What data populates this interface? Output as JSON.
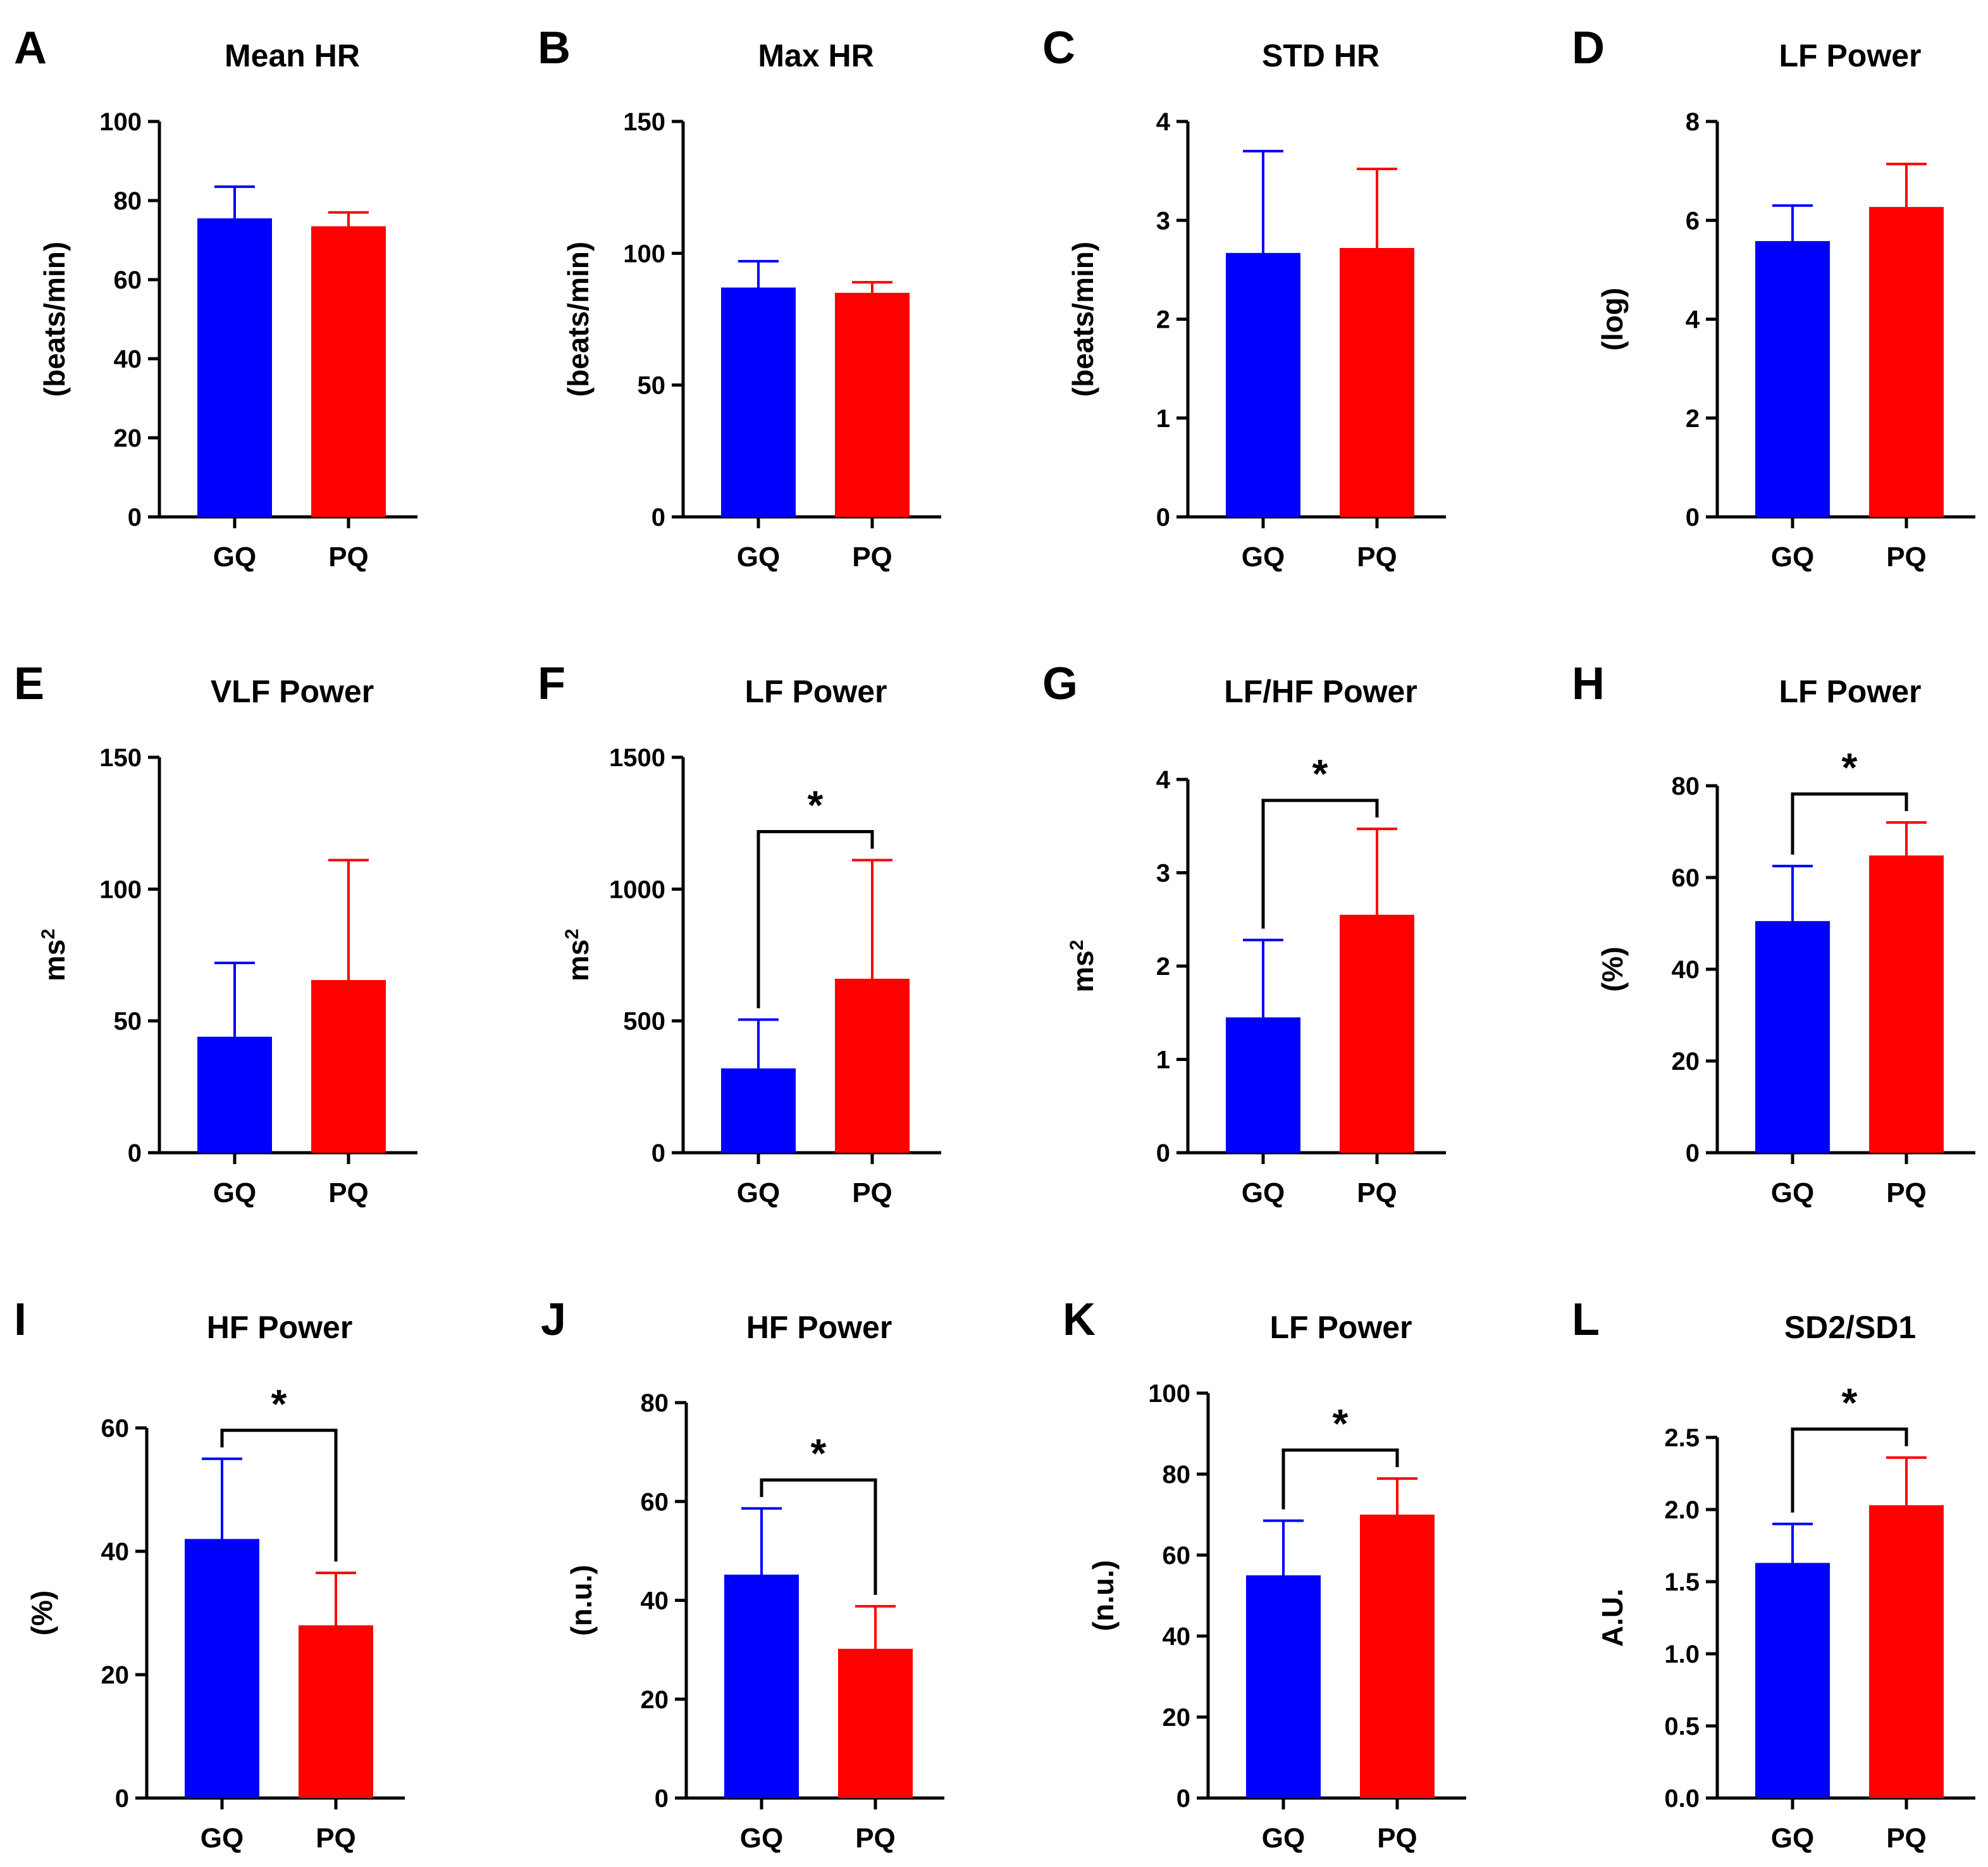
{
  "colors": {
    "GQ": "#0000ff",
    "PQ": "#ff0000",
    "axis": "#000000"
  },
  "chart_data": [
    {
      "type": "bar",
      "panel": "A",
      "title": "Mean HR",
      "ylabel": "(beats/min)",
      "ylabel_sup": "",
      "categories": [
        "GQ",
        "PQ"
      ],
      "values": [
        75.5,
        73.5
      ],
      "errors": [
        8.0,
        3.5
      ],
      "ylim": [
        0,
        100
      ],
      "yticks": [
        "0",
        "20",
        "40",
        "60",
        "80",
        "100"
      ],
      "significance": null
    },
    {
      "type": "bar",
      "panel": "B",
      "title": "Max HR",
      "ylabel": "(beats/min)",
      "ylabel_sup": "",
      "categories": [
        "GQ",
        "PQ"
      ],
      "values": [
        87,
        85
      ],
      "errors": [
        10,
        4
      ],
      "ylim": [
        0,
        150
      ],
      "yticks": [
        "0",
        "50",
        "100",
        "150"
      ],
      "significance": null
    },
    {
      "type": "bar",
      "panel": "C",
      "title": "STD HR",
      "ylabel": "(beats/min)",
      "ylabel_sup": "",
      "categories": [
        "GQ",
        "PQ"
      ],
      "values": [
        2.67,
        2.72
      ],
      "errors": [
        1.03,
        0.8
      ],
      "ylim": [
        0,
        4
      ],
      "yticks": [
        "0",
        "1",
        "2",
        "3",
        "4"
      ],
      "significance": null
    },
    {
      "type": "bar",
      "panel": "D",
      "title": "LF Power",
      "ylabel": "(log)",
      "ylabel_sup": "",
      "categories": [
        "GQ",
        "PQ"
      ],
      "values": [
        5.58,
        6.27
      ],
      "errors": [
        0.72,
        0.87
      ],
      "ylim": [
        0,
        8
      ],
      "yticks": [
        "0",
        "2",
        "4",
        "6",
        "8"
      ],
      "significance": null
    },
    {
      "type": "bar",
      "panel": "E",
      "title": "VLF Power",
      "ylabel": "ms",
      "ylabel_sup": "2",
      "categories": [
        "GQ",
        "PQ"
      ],
      "values": [
        44,
        65.5
      ],
      "errors": [
        28,
        45.5
      ],
      "ylim": [
        0,
        150
      ],
      "yticks": [
        "0",
        "50",
        "100",
        "150"
      ],
      "significance": null
    },
    {
      "type": "bar",
      "panel": "F",
      "title": "LF Power",
      "ylabel": "ms",
      "ylabel_sup": "2",
      "categories": [
        "GQ",
        "PQ"
      ],
      "values": [
        320,
        660
      ],
      "errors": [
        185,
        450
      ],
      "ylim": [
        0,
        1500
      ],
      "yticks": [
        "0",
        "500",
        "1000",
        "1500"
      ],
      "significance": "*"
    },
    {
      "type": "bar",
      "panel": "G",
      "title": "LF/HF Power",
      "ylabel": "ms",
      "ylabel_sup": "2",
      "categories": [
        "GQ",
        "PQ"
      ],
      "values": [
        1.45,
        2.55
      ],
      "errors": [
        0.83,
        0.92
      ],
      "ylim": [
        0,
        4
      ],
      "yticks": [
        "0",
        "1",
        "2",
        "3",
        "4"
      ],
      "significance": "*"
    },
    {
      "type": "bar",
      "panel": "H",
      "title": "LF Power",
      "ylabel": "(%)",
      "ylabel_sup": "",
      "categories": [
        "GQ",
        "PQ"
      ],
      "values": [
        50.5,
        64.8
      ],
      "errors": [
        12.0,
        7.2
      ],
      "ylim": [
        0,
        80
      ],
      "yticks": [
        "0",
        "20",
        "40",
        "60",
        "80"
      ],
      "significance": "*"
    },
    {
      "type": "bar",
      "panel": "I",
      "title": "HF Power",
      "ylabel": "(%)",
      "ylabel_sup": "",
      "categories": [
        "GQ",
        "PQ"
      ],
      "values": [
        42,
        28
      ],
      "errors": [
        13,
        8.5
      ],
      "ylim": [
        0,
        60
      ],
      "yticks": [
        "0",
        "20",
        "40",
        "60"
      ],
      "significance": "*"
    },
    {
      "type": "bar",
      "panel": "J",
      "title": "HF Power",
      "ylabel": "(n.u.)",
      "ylabel_sup": "",
      "categories": [
        "GQ",
        "PQ"
      ],
      "values": [
        45.2,
        30.2
      ],
      "errors": [
        13.4,
        8.6
      ],
      "ylim": [
        0,
        80
      ],
      "yticks": [
        "0",
        "20",
        "40",
        "60",
        "80"
      ],
      "significance": "*"
    },
    {
      "type": "bar",
      "panel": "K",
      "title": "LF Power",
      "ylabel": "(n.u.)",
      "ylabel_sup": "",
      "categories": [
        "GQ",
        "PQ"
      ],
      "values": [
        55,
        70
      ],
      "errors": [
        13.5,
        8.9
      ],
      "ylim": [
        0,
        100
      ],
      "yticks": [
        "0",
        "20",
        "40",
        "60",
        "80",
        "100"
      ],
      "significance": "*"
    },
    {
      "type": "bar",
      "panel": "L",
      "title": "SD2/SD1",
      "ylabel": "A.U.",
      "ylabel_sup": "",
      "categories": [
        "GQ",
        "PQ"
      ],
      "values": [
        1.63,
        2.03
      ],
      "errors": [
        0.27,
        0.33
      ],
      "ylim": [
        0,
        2.5
      ],
      "yticks": [
        "0.0",
        "0.5",
        "1.0",
        "1.5",
        "2.0",
        "2.5"
      ],
      "significance": "*"
    }
  ]
}
